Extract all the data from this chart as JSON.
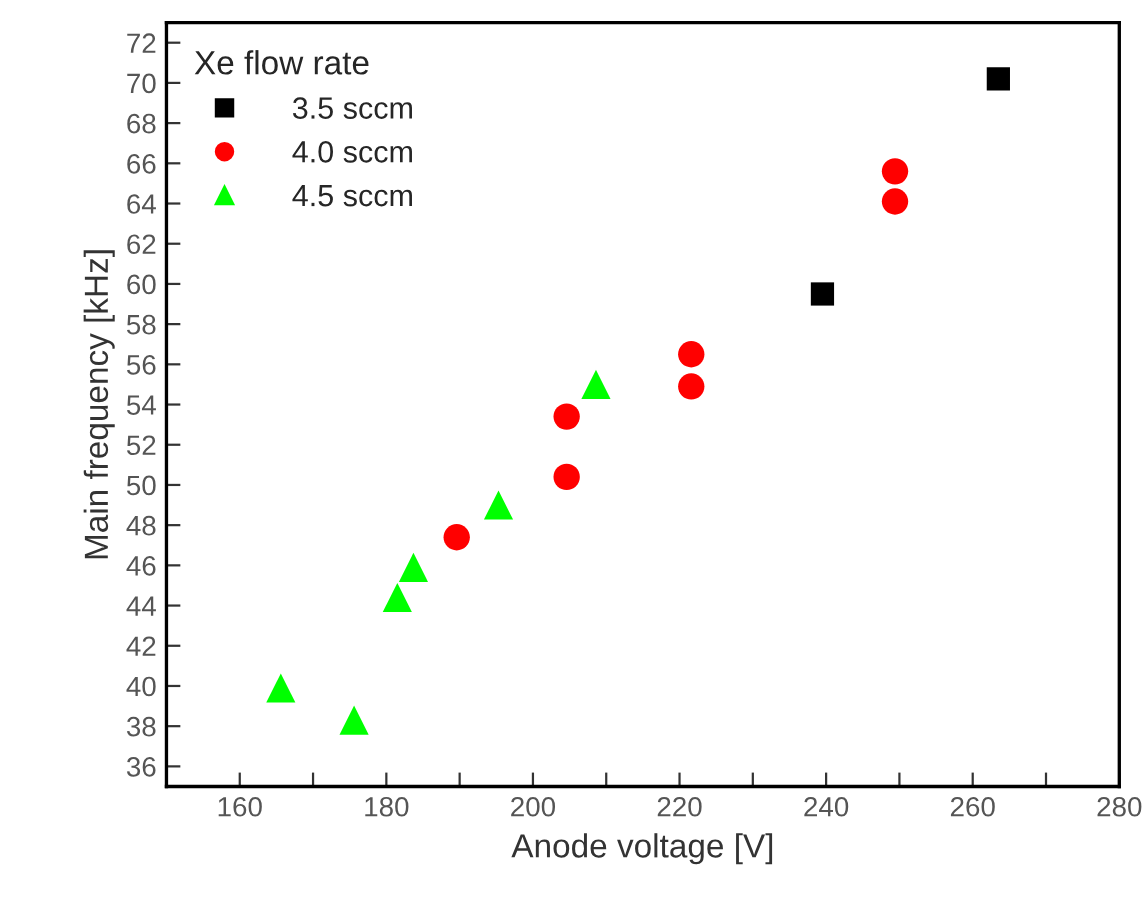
{
  "chart_data": {
    "type": "scatter",
    "xlabel": "Anode voltage [V]",
    "ylabel": "Main frequency [kHz]",
    "legend_title": "Xe flow rate",
    "legend": "top left",
    "grid": false,
    "xlim": [
      150,
      280
    ],
    "ylim": [
      35,
      73
    ],
    "xticks": [
      {
        "value": 150,
        "label": null
      },
      160,
      {
        "value": 170,
        "label": null
      },
      180,
      {
        "value": 190,
        "label": null
      },
      200,
      {
        "value": 210,
        "label": null
      },
      220,
      {
        "value": 230,
        "label": null
      },
      240,
      {
        "value": 250,
        "label": null
      },
      260,
      {
        "value": 270,
        "label": null
      },
      280
    ],
    "yticks": [
      36,
      38,
      40,
      42,
      44,
      46,
      48,
      50,
      52,
      54,
      56,
      58,
      60,
      62,
      64,
      66,
      68,
      70,
      72
    ],
    "series": [
      {
        "name": "3.5 sccm",
        "color": "#000000",
        "marker": "square",
        "x": [
          263.5,
          239.5
        ],
        "values": [
          70.2,
          59.5
        ]
      },
      {
        "name": "4.0 sccm",
        "color": "#ff0000",
        "marker": "circle",
        "x": [
          249.4,
          249.4,
          221.6,
          221.6,
          204.6,
          204.6,
          189.6
        ],
        "values": [
          65.6,
          64.1,
          56.5,
          54.9,
          53.4,
          50.4,
          47.4
        ]
      },
      {
        "name": "4.5 sccm",
        "color": "#00ff00",
        "marker": "triangle",
        "x": [
          208.6,
          195.3,
          183.7,
          181.5,
          165.6,
          175.6
        ],
        "values": [
          55.0,
          49.0,
          45.9,
          44.4,
          39.9,
          38.3
        ]
      }
    ]
  }
}
